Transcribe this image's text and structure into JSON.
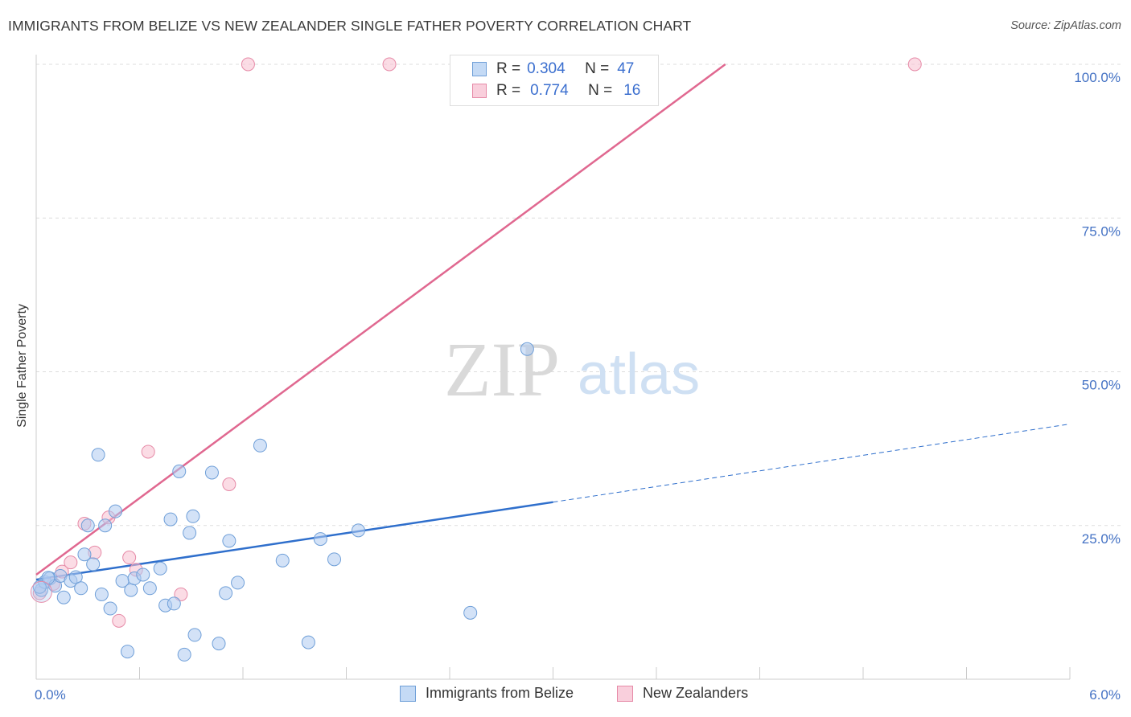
{
  "header": {
    "title": "IMMIGRANTS FROM BELIZE VS NEW ZEALANDER SINGLE FATHER POVERTY CORRELATION CHART",
    "source": "Source: ZipAtlas.com"
  },
  "watermark": {
    "zip": "ZIP",
    "atlas": "atlas"
  },
  "legend": {
    "rows": [
      {
        "r_label": "R =",
        "r_value": "0.304",
        "n_label": "N =",
        "n_value": "47"
      },
      {
        "r_label": "R =",
        "r_value": "0.774",
        "n_label": "N =",
        "n_value": "16"
      }
    ]
  },
  "bottom_legend": {
    "items": [
      {
        "label": "Immigrants from Belize"
      },
      {
        "label": "New Zealanders"
      }
    ]
  },
  "colors": {
    "belize_fill": "#aecbf0",
    "belize_stroke": "#6f9fd8",
    "belize_line": "#2f6fcc",
    "nz_fill": "#f7bfd0",
    "nz_stroke": "#e68aa7",
    "nz_line": "#e06890",
    "grid": "#dddddd",
    "axis_text": "#4472c4"
  },
  "chart_data": {
    "type": "scatter",
    "title": "IMMIGRANTS FROM BELIZE VS NEW ZEALANDER SINGLE FATHER POVERTY CORRELATION CHART",
    "xlabel": "",
    "ylabel": "Single Father Poverty",
    "xlim": [
      0,
      6
    ],
    "ylim": [
      0,
      100
    ],
    "x_tick_labels": [
      "0.0%",
      "6.0%"
    ],
    "y_ticks": [
      25,
      50,
      75,
      100
    ],
    "y_tick_labels": [
      "25.0%",
      "50.0%",
      "75.0%",
      "100.0%"
    ],
    "grid": true,
    "legend_position": "top-center",
    "series": [
      {
        "name": "Immigrants from Belize",
        "color": "#6f9fd8",
        "trend": {
          "x0": 0,
          "y0": 16.2,
          "x1": 3.0,
          "y1": 28.8,
          "dashed_to_x": 6.0,
          "dashed_to_y": 41.5
        },
        "points": [
          [
            0.03,
            14.5
          ],
          [
            0.05,
            15.8
          ],
          [
            0.08,
            16.4
          ],
          [
            0.11,
            15.2
          ],
          [
            0.14,
            16.8
          ],
          [
            0.16,
            13.3
          ],
          [
            0.2,
            16.0
          ],
          [
            0.23,
            16.6
          ],
          [
            0.26,
            14.8
          ],
          [
            0.28,
            20.3
          ],
          [
            0.3,
            25.0
          ],
          [
            0.33,
            18.7
          ],
          [
            0.36,
            36.5
          ],
          [
            0.38,
            13.8
          ],
          [
            0.4,
            25.0
          ],
          [
            0.43,
            11.5
          ],
          [
            0.46,
            27.3
          ],
          [
            0.5,
            16.0
          ],
          [
            0.53,
            4.5
          ],
          [
            0.55,
            14.5
          ],
          [
            0.57,
            16.4
          ],
          [
            0.62,
            17.0
          ],
          [
            0.66,
            14.8
          ],
          [
            0.72,
            18.0
          ],
          [
            0.75,
            12.0
          ],
          [
            0.78,
            26.0
          ],
          [
            0.8,
            12.3
          ],
          [
            0.83,
            33.8
          ],
          [
            0.86,
            4.0
          ],
          [
            0.89,
            23.8
          ],
          [
            0.91,
            26.5
          ],
          [
            0.92,
            7.2
          ],
          [
            1.02,
            33.6
          ],
          [
            1.06,
            5.8
          ],
          [
            1.1,
            14.0
          ],
          [
            1.12,
            22.5
          ],
          [
            1.17,
            15.7
          ],
          [
            1.3,
            38.0
          ],
          [
            1.43,
            19.3
          ],
          [
            1.58,
            6.0
          ],
          [
            1.65,
            22.8
          ],
          [
            1.73,
            19.5
          ],
          [
            1.87,
            24.2
          ],
          [
            2.52,
            10.8
          ],
          [
            2.85,
            53.7
          ],
          [
            0.02,
            15.0
          ],
          [
            0.07,
            16.5
          ]
        ]
      },
      {
        "name": "New Zealanders",
        "color": "#e68aa7",
        "trend": {
          "x0": 0,
          "y0": 17.0,
          "x1": 4.0,
          "y1": 100.0
        },
        "points": [
          [
            0.02,
            14.0
          ],
          [
            0.1,
            15.5
          ],
          [
            0.15,
            17.5
          ],
          [
            0.2,
            19.0
          ],
          [
            0.28,
            25.3
          ],
          [
            0.34,
            20.6
          ],
          [
            0.42,
            26.3
          ],
          [
            0.48,
            9.5
          ],
          [
            0.54,
            19.8
          ],
          [
            0.58,
            17.8
          ],
          [
            0.65,
            37.0
          ],
          [
            0.84,
            13.8
          ],
          [
            1.12,
            31.7
          ],
          [
            1.23,
            100.0
          ],
          [
            2.05,
            100.0
          ],
          [
            5.1,
            100.0
          ]
        ]
      }
    ]
  }
}
